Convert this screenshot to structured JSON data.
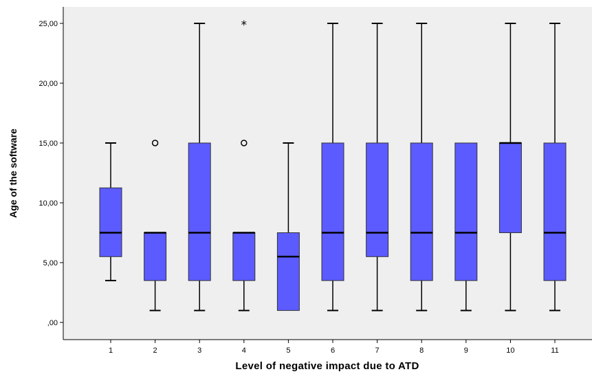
{
  "chart_data": {
    "type": "boxplot",
    "title": "",
    "xlabel": "Level of negative impact due to ATD",
    "ylabel": "Age of the software",
    "categories": [
      "1",
      "2",
      "3",
      "4",
      "5",
      "6",
      "7",
      "8",
      "9",
      "10",
      "11"
    ],
    "y_ticks": [
      ",00",
      "5,00",
      "10,00",
      "15,00",
      "20,00",
      "25,00"
    ],
    "y_tick_values": [
      0,
      5,
      10,
      15,
      20,
      25
    ],
    "ylim": [
      -1.5,
      26.5
    ],
    "grid": false,
    "box_color": "#5b5bff",
    "plot_background": "#efefef",
    "boxes": [
      {
        "category": "1",
        "whisker_low": 3.5,
        "q1": 5.5,
        "median": 7.5,
        "q3": 11.25,
        "whisker_high": 15,
        "outliers": [],
        "extremes": []
      },
      {
        "category": "2",
        "whisker_low": 1,
        "q1": 3.5,
        "median": 7.5,
        "q3": 7.5,
        "whisker_high": 7.5,
        "outliers": [
          15
        ],
        "extremes": []
      },
      {
        "category": "3",
        "whisker_low": 1,
        "q1": 3.5,
        "median": 7.5,
        "q3": 15,
        "whisker_high": 25,
        "outliers": [],
        "extremes": []
      },
      {
        "category": "4",
        "whisker_low": 1,
        "q1": 3.5,
        "median": 7.5,
        "q3": 7.5,
        "whisker_high": 7.5,
        "outliers": [
          15
        ],
        "extremes": [
          25
        ]
      },
      {
        "category": "5",
        "whisker_low": 1,
        "q1": 1,
        "median": 5.5,
        "q3": 7.5,
        "whisker_high": 15,
        "outliers": [],
        "extremes": []
      },
      {
        "category": "6",
        "whisker_low": 1,
        "q1": 3.5,
        "median": 7.5,
        "q3": 15,
        "whisker_high": 25,
        "outliers": [],
        "extremes": []
      },
      {
        "category": "7",
        "whisker_low": 1,
        "q1": 5.5,
        "median": 7.5,
        "q3": 15,
        "whisker_high": 25,
        "outliers": [],
        "extremes": []
      },
      {
        "category": "8",
        "whisker_low": 1,
        "q1": 3.5,
        "median": 7.5,
        "q3": 15,
        "whisker_high": 25,
        "outliers": [],
        "extremes": []
      },
      {
        "category": "9",
        "whisker_low": 1,
        "q1": 3.5,
        "median": 7.5,
        "q3": 15,
        "whisker_high": 15,
        "outliers": [],
        "extremes": []
      },
      {
        "category": "10",
        "whisker_low": 1,
        "q1": 7.5,
        "median": 15,
        "q3": 15,
        "whisker_high": 25,
        "outliers": [],
        "extremes": []
      },
      {
        "category": "11",
        "whisker_low": 1,
        "q1": 3.5,
        "median": 7.5,
        "q3": 15,
        "whisker_high": 25,
        "outliers": [],
        "extremes": []
      }
    ]
  }
}
